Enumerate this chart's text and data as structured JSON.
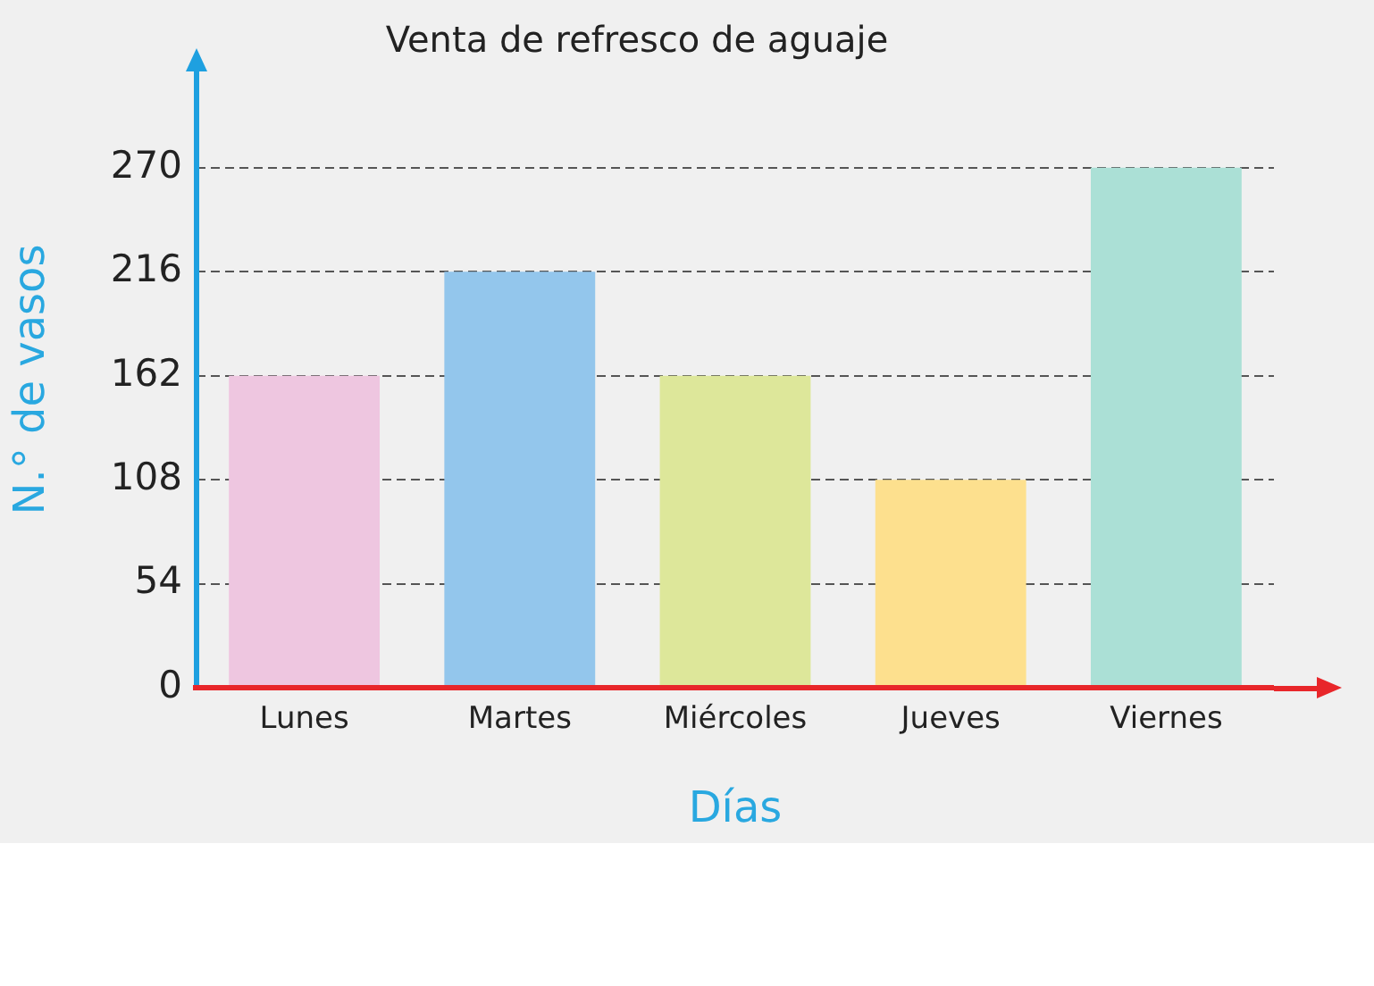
{
  "chart_data": {
    "type": "bar",
    "title": "Venta de refresco de aguaje",
    "xlabel": "Días",
    "ylabel": "N.° de vasos",
    "categories": [
      "Lunes",
      "Martes",
      "Miércoles",
      "Jueves",
      "Viernes"
    ],
    "values": [
      162,
      216,
      162,
      108,
      270
    ],
    "colors": [
      "#eec6e0",
      "#93c6ec",
      "#dde79a",
      "#fde08e",
      "#abe0d6"
    ],
    "ylim": [
      0,
      320
    ],
    "yticks": [
      0,
      54,
      108,
      162,
      216,
      270
    ],
    "grid": "y",
    "legend": false
  }
}
